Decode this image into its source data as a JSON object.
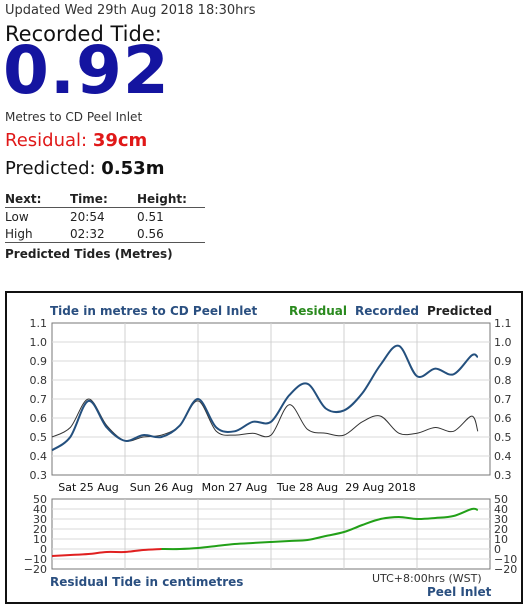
{
  "header": {
    "updated": "Updated Wed 29th Aug 2018 18:30hrs",
    "recorded_label": "Recorded Tide:",
    "recorded_value": "0.92",
    "units_text": "Metres to CD Peel Inlet",
    "residual_label": "Residual:",
    "residual_value": "39cm",
    "predicted_label": "Predicted:",
    "predicted_value": "0.53m"
  },
  "next_table": {
    "headers": [
      "Next:",
      "Time:",
      "Height:"
    ],
    "rows": [
      [
        "Low",
        "20:54",
        "0.51"
      ],
      [
        "High",
        "02:32",
        "0.56"
      ]
    ],
    "caption": "Predicted Tides (Metres)"
  },
  "chart": {
    "title": "Tide in metres to CD Peel Inlet",
    "legend": {
      "residual": "Residual",
      "recorded": "Recorded",
      "predicted": "Predicted"
    },
    "colors": {
      "recorded": "#24507e",
      "predicted": "#333333",
      "residual_pos": "#22a018",
      "residual_neg": "#e02020"
    },
    "day_labels": [
      "Sat 25 Aug",
      "Sun 26 Aug",
      "Mon 27 Aug",
      "Tue 28 Aug",
      "29 Aug 2018"
    ],
    "top_ticks": [
      "1.1",
      "1.0",
      "0.9",
      "0.8",
      "0.7",
      "0.6",
      "0.5",
      "0.4",
      "0.3"
    ],
    "bottom_ticks": [
      "50",
      "40",
      "30",
      "20",
      "10",
      "0",
      "−10",
      "−20"
    ],
    "residual_caption": "Residual Tide in centimetres",
    "timezone": "UTC+8:00hrs (WST)",
    "location": "Peel Inlet"
  },
  "chart_data": [
    {
      "type": "line",
      "title": "Tide in metres to CD Peel Inlet",
      "x_unit": "hours from Sat 25 Aug 00:00",
      "ylim": [
        0.3,
        1.1
      ],
      "series": [
        {
          "name": "Recorded",
          "x": [
            0,
            6,
            12,
            18,
            24,
            30,
            36,
            42,
            48,
            54,
            60,
            66,
            72,
            78,
            84,
            90,
            96,
            102,
            108,
            114,
            120,
            126,
            132,
            138,
            140
          ],
          "y": [
            0.43,
            0.5,
            0.69,
            0.55,
            0.48,
            0.51,
            0.5,
            0.56,
            0.7,
            0.55,
            0.53,
            0.58,
            0.58,
            0.72,
            0.78,
            0.65,
            0.64,
            0.73,
            0.88,
            0.98,
            0.82,
            0.86,
            0.83,
            0.93,
            0.92
          ]
        },
        {
          "name": "Predicted",
          "x": [
            0,
            6,
            12,
            18,
            24,
            30,
            36,
            42,
            48,
            54,
            60,
            66,
            72,
            78,
            84,
            90,
            96,
            102,
            108,
            114,
            120,
            126,
            132,
            138,
            140
          ],
          "y": [
            0.5,
            0.55,
            0.7,
            0.56,
            0.48,
            0.5,
            0.51,
            0.56,
            0.69,
            0.53,
            0.51,
            0.52,
            0.51,
            0.67,
            0.54,
            0.52,
            0.51,
            0.58,
            0.61,
            0.52,
            0.52,
            0.55,
            0.53,
            0.61,
            0.53
          ]
        }
      ]
    },
    {
      "type": "line",
      "title": "Residual Tide in centimetres",
      "x_unit": "hours from Sat 25 Aug 00:00",
      "ylim": [
        -20,
        50
      ],
      "series": [
        {
          "name": "Residual",
          "x": [
            0,
            6,
            12,
            18,
            24,
            30,
            36,
            42,
            48,
            54,
            60,
            66,
            72,
            78,
            84,
            90,
            96,
            102,
            108,
            114,
            120,
            126,
            132,
            138,
            140
          ],
          "y": [
            -7,
            -6,
            -5,
            -3,
            -3,
            -1,
            0,
            0,
            1,
            3,
            5,
            6,
            7,
            8,
            9,
            13,
            17,
            24,
            30,
            32,
            30,
            31,
            33,
            40,
            39
          ]
        }
      ]
    }
  ]
}
